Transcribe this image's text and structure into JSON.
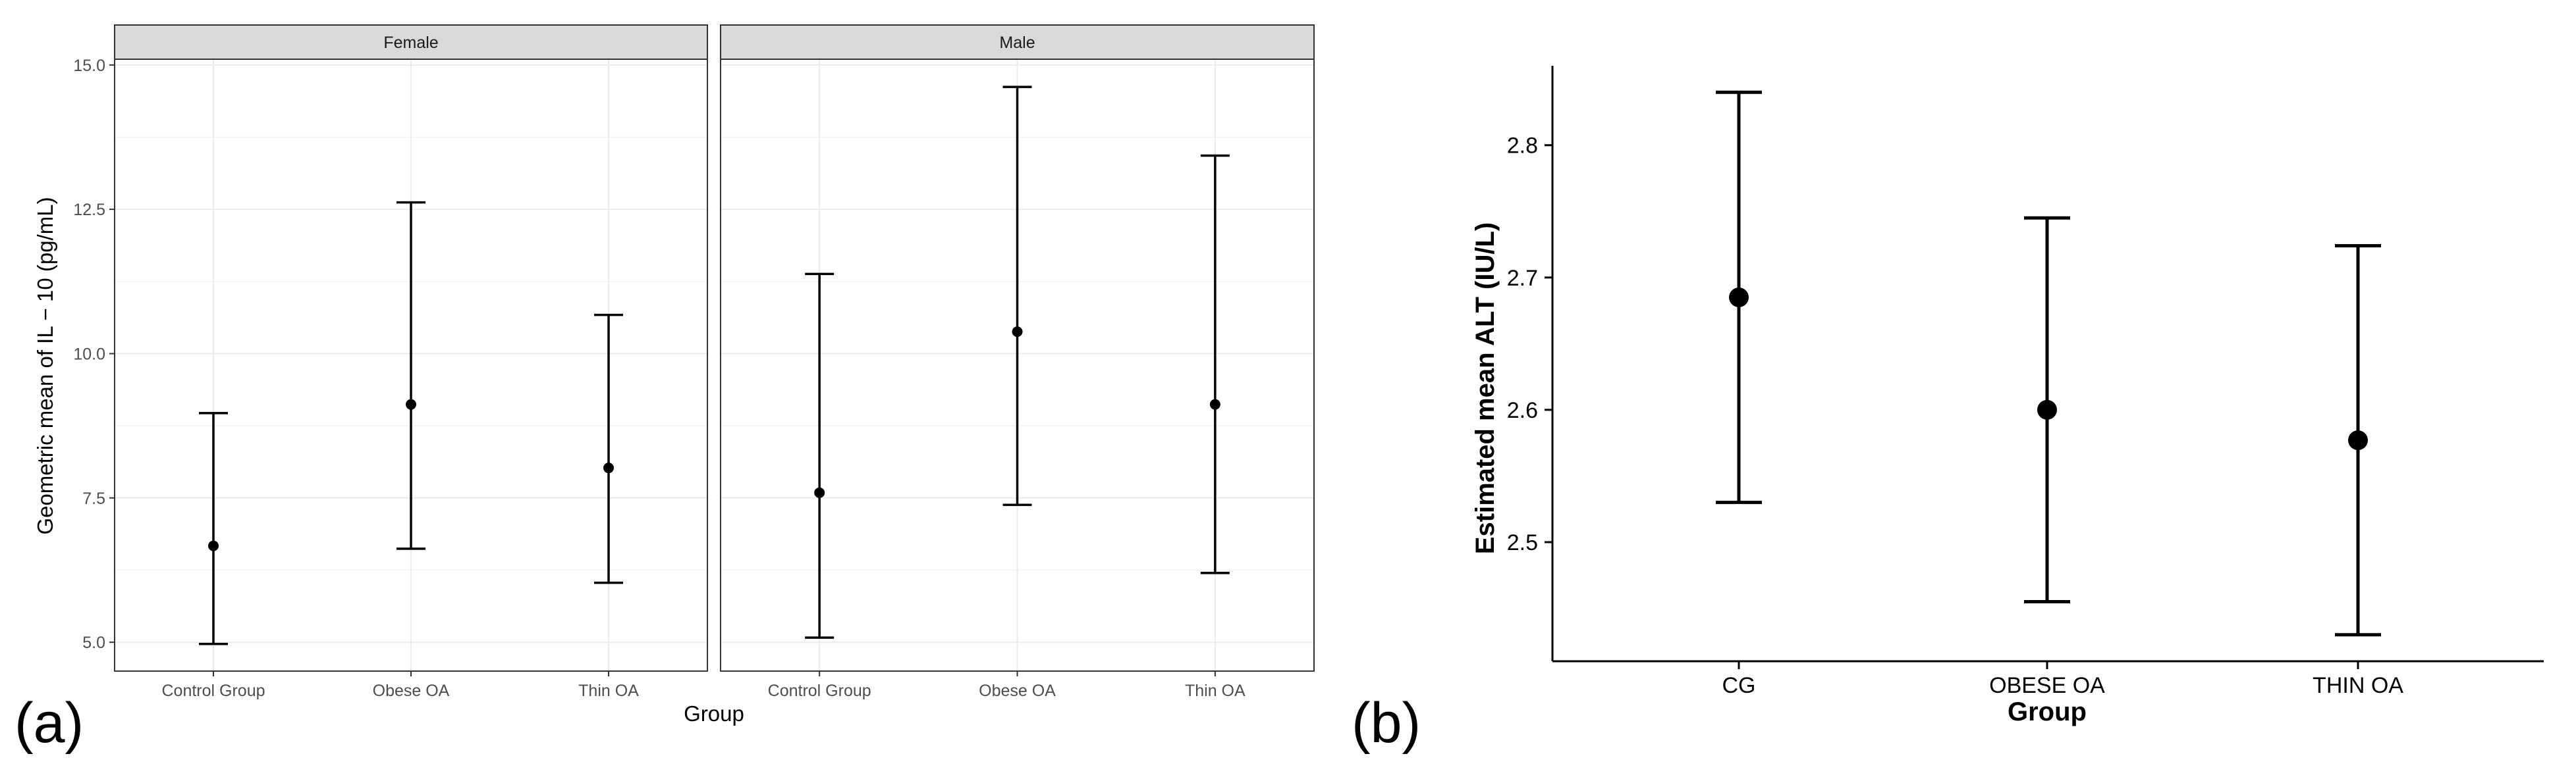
{
  "panels": {
    "a": {
      "label": "(a)"
    },
    "b": {
      "label": "(b)"
    }
  },
  "chart_data": [
    {
      "type": "scatter",
      "subtype": "point-with-errorbars",
      "facets": [
        {
          "name": "Female",
          "points": [
            {
              "x": "Control Group",
              "y": 6.67,
              "lower": 4.97,
              "upper": 8.97
            },
            {
              "x": "Obese OA",
              "y": 9.12,
              "lower": 6.62,
              "upper": 12.62
            },
            {
              "x": "Thin OA",
              "y": 8.02,
              "lower": 6.03,
              "upper": 10.67
            }
          ]
        },
        {
          "name": "Male",
          "points": [
            {
              "x": "Control Group",
              "y": 7.59,
              "lower": 5.08,
              "upper": 11.38
            },
            {
              "x": "Obese OA",
              "y": 10.38,
              "lower": 7.38,
              "upper": 14.62
            },
            {
              "x": "Thin OA",
              "y": 9.12,
              "lower": 6.2,
              "upper": 13.43
            }
          ]
        }
      ],
      "categories": [
        "Control Group",
        "Obese OA",
        "Thin OA"
      ],
      "xlabel": "Group",
      "ylabel": "Geometric mean of IL − 10 (pg/mL)",
      "ylim": [
        4.5,
        15.1
      ],
      "yticks": [
        5.0,
        7.5,
        10.0,
        12.5,
        15.0
      ],
      "ytick_labels": [
        "5.0",
        "7.5",
        "10.0",
        "12.5",
        "15.0"
      ],
      "grid": true
    },
    {
      "type": "scatter",
      "subtype": "point-with-errorbars",
      "categories": [
        "CG",
        "OBESE OA",
        "THIN OA"
      ],
      "points": [
        {
          "x": "CG",
          "y": 2.685,
          "lower": 2.53,
          "upper": 2.84
        },
        {
          "x": "OBESE OA",
          "y": 2.6,
          "lower": 2.455,
          "upper": 2.745
        },
        {
          "x": "THIN OA",
          "y": 2.577,
          "lower": 2.43,
          "upper": 2.724
        }
      ],
      "xlabel": "Group",
      "ylabel": "Estimated mean ALT (IU/L)",
      "ylim": [
        2.41,
        2.86
      ],
      "yticks": [
        2.5,
        2.6,
        2.7,
        2.8
      ],
      "ytick_labels": [
        "2.5",
        "2.6",
        "2.7",
        "2.8"
      ],
      "grid": false
    }
  ]
}
